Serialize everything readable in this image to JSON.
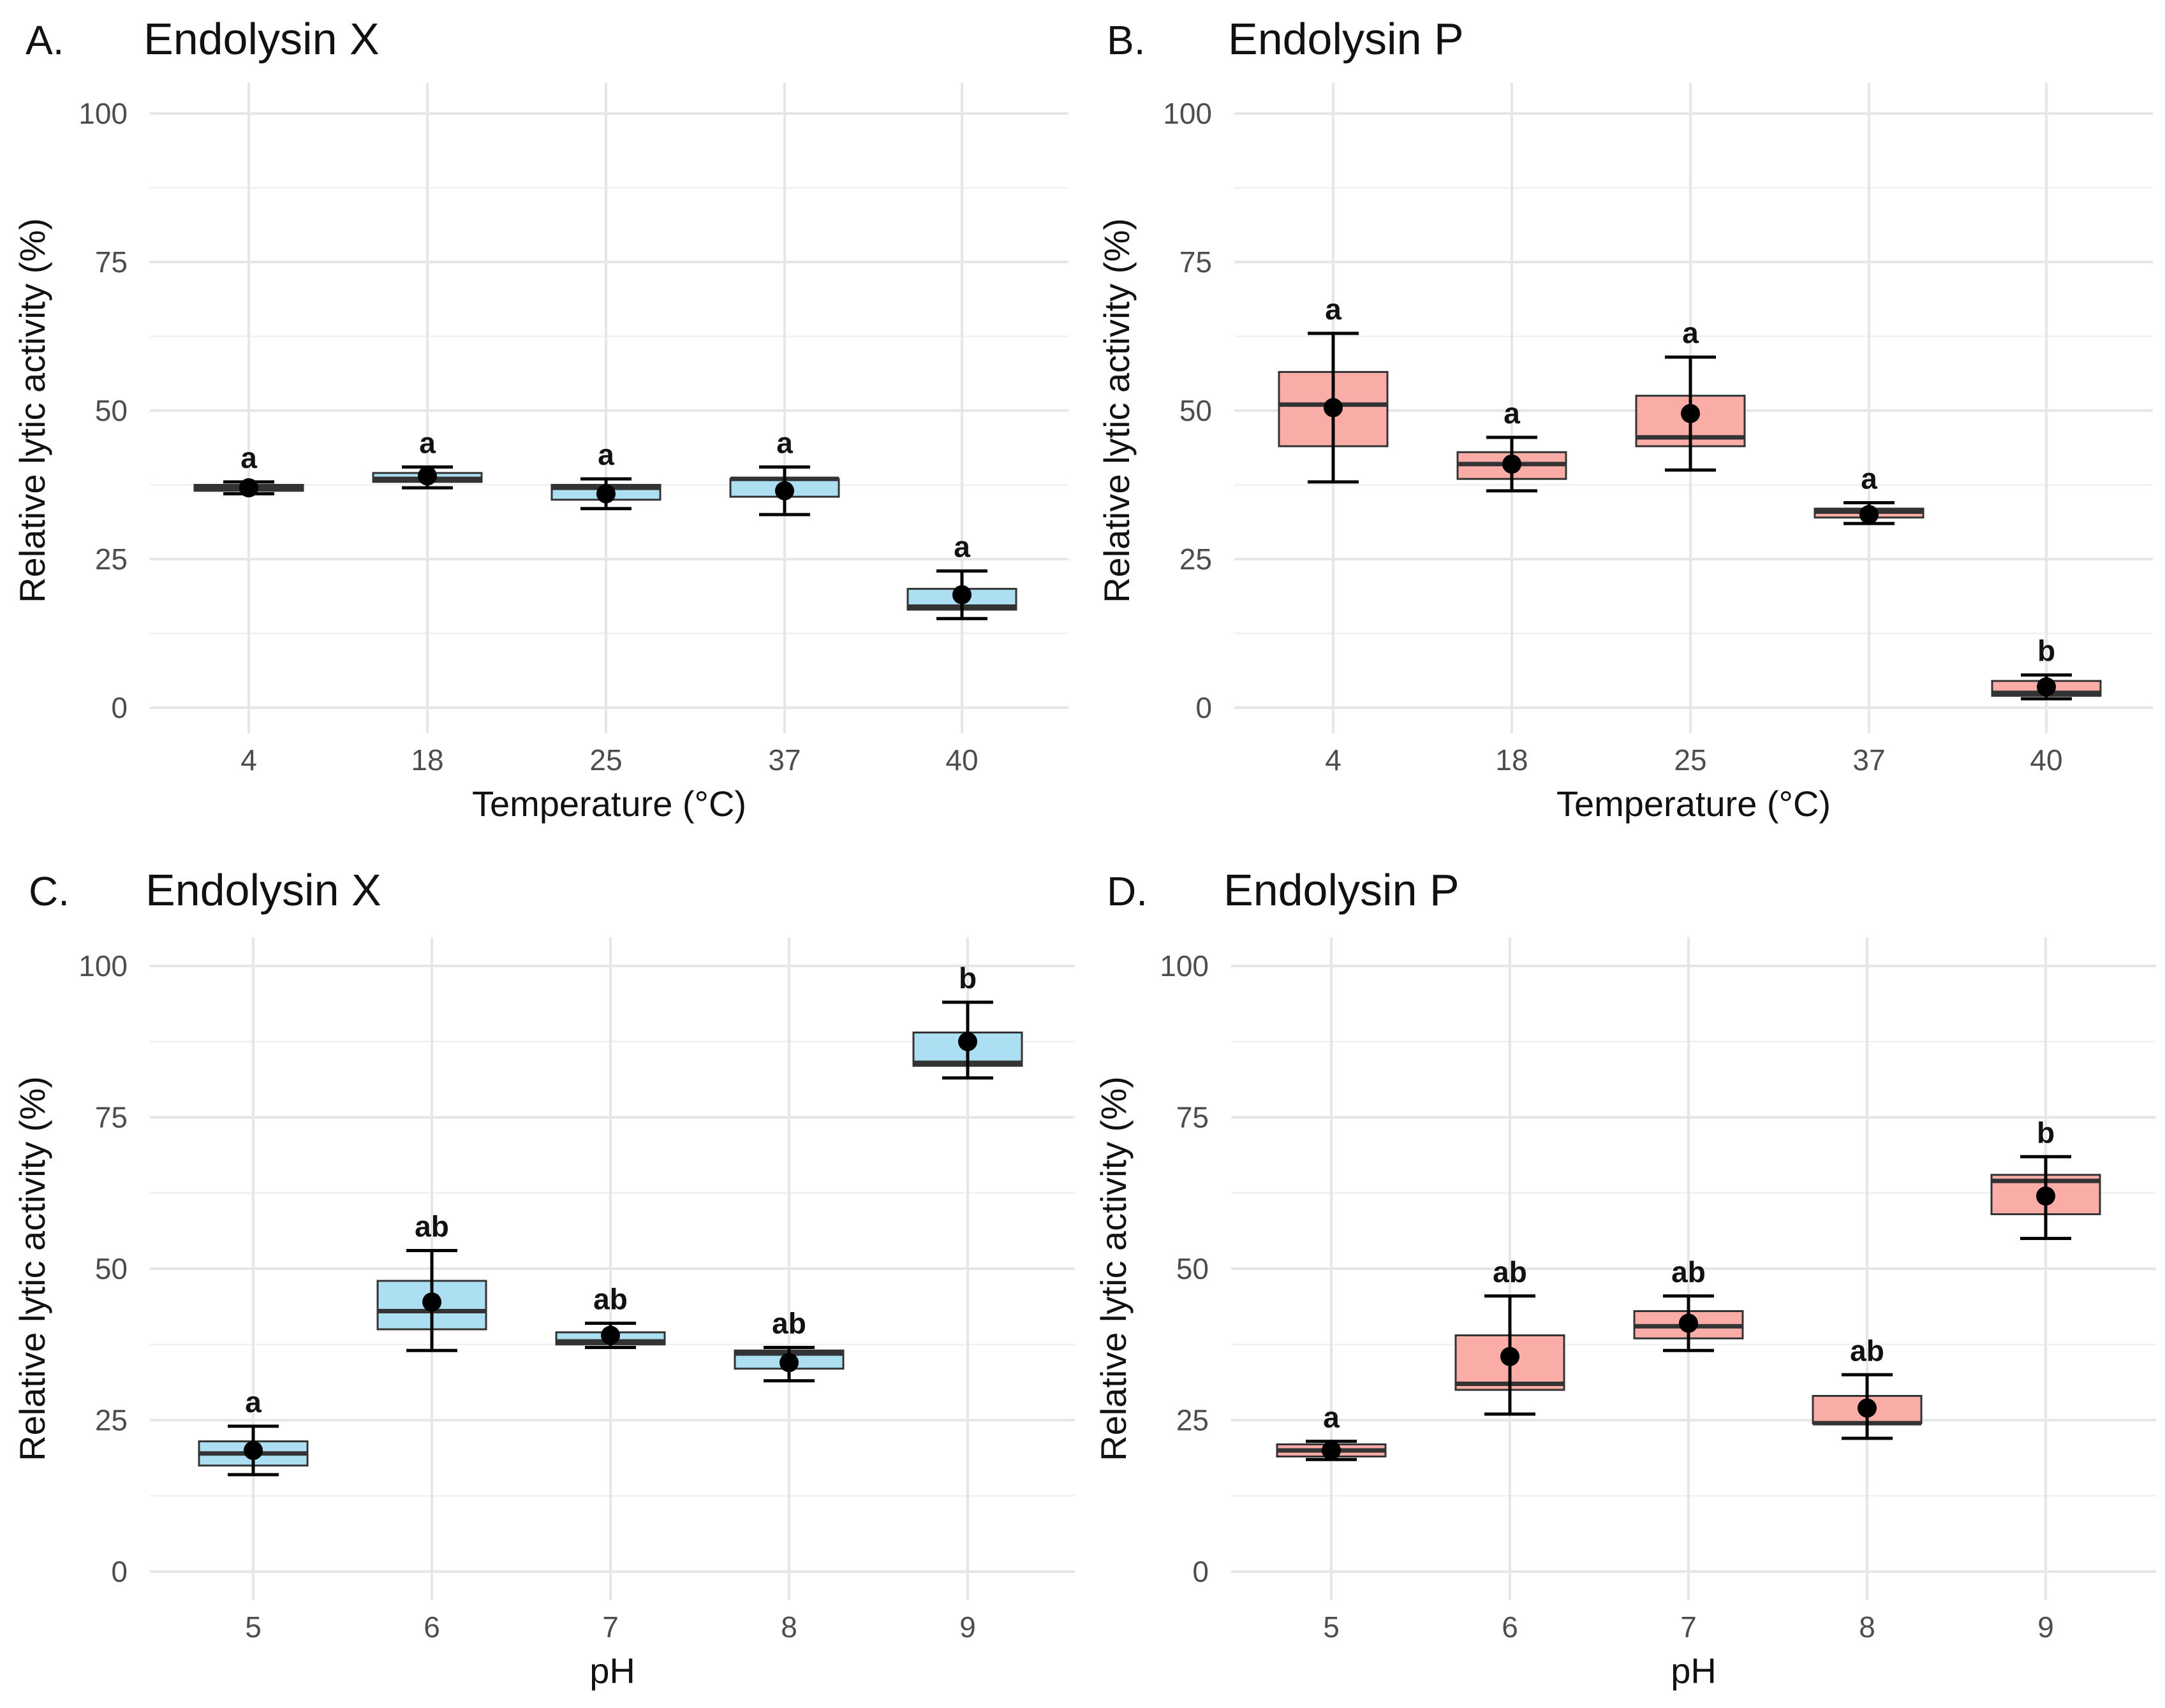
{
  "chart_data": [
    {
      "panel": "A.",
      "type": "box",
      "title": "Endolysin X",
      "xlabel": "Temperature (°C)",
      "ylabel": "Relative lytic activity (%)",
      "ylim": [
        0,
        100
      ],
      "yticks": [
        0,
        25,
        50,
        75,
        100
      ],
      "fill_color": "#ADDFF2",
      "categories": [
        "4",
        "18",
        "25",
        "37",
        "40"
      ],
      "boxes": [
        {
          "q1": 36.5,
          "median": 37.0,
          "q3": 37.5,
          "mean": 37.0,
          "err_low": 36.0,
          "err_high": 38.0,
          "label": "a"
        },
        {
          "q1": 38.0,
          "median": 38.5,
          "q3": 39.5,
          "mean": 39.0,
          "err_low": 37.0,
          "err_high": 40.5,
          "label": "a"
        },
        {
          "q1": 35.0,
          "median": 37.0,
          "q3": 37.5,
          "mean": 36.0,
          "err_low": 33.5,
          "err_high": 38.5,
          "label": "a"
        },
        {
          "q1": 35.5,
          "median": 38.5,
          "q3": 38.5,
          "mean": 36.5,
          "err_low": 32.5,
          "err_high": 40.5,
          "label": "a"
        },
        {
          "q1": 16.5,
          "median": 17.0,
          "q3": 20.0,
          "mean": 19.0,
          "err_low": 15.0,
          "err_high": 23.0,
          "label": "a"
        }
      ]
    },
    {
      "panel": "B.",
      "type": "box",
      "title": "Endolysin P",
      "xlabel": "Temperature (°C)",
      "ylabel": "Relative lytic activity (%)",
      "ylim": [
        0,
        100
      ],
      "yticks": [
        0,
        25,
        50,
        75,
        100
      ],
      "fill_color": "#F9ADA6",
      "categories": [
        "4",
        "18",
        "25",
        "37",
        "40"
      ],
      "boxes": [
        {
          "q1": 44.0,
          "median": 51.0,
          "q3": 56.5,
          "mean": 50.5,
          "err_low": 38.0,
          "err_high": 63.0,
          "label": "a"
        },
        {
          "q1": 38.5,
          "median": 41.0,
          "q3": 43.0,
          "mean": 41.0,
          "err_low": 36.5,
          "err_high": 45.5,
          "label": "a"
        },
        {
          "q1": 44.0,
          "median": 45.5,
          "q3": 52.5,
          "mean": 49.5,
          "err_low": 40.0,
          "err_high": 59.0,
          "label": "a"
        },
        {
          "q1": 32.0,
          "median": 33.0,
          "q3": 33.5,
          "mean": 32.5,
          "err_low": 31.0,
          "err_high": 34.5,
          "label": "a"
        },
        {
          "q1": 2.0,
          "median": 2.5,
          "q3": 4.5,
          "mean": 3.5,
          "err_low": 1.5,
          "err_high": 5.5,
          "label": "b"
        }
      ]
    },
    {
      "panel": "C.",
      "type": "box",
      "title": "Endolysin X",
      "xlabel": "pH",
      "ylabel": "Relative lytic activity (%)",
      "ylim": [
        0,
        100
      ],
      "yticks": [
        0,
        25,
        50,
        75,
        100
      ],
      "fill_color": "#ADDFF2",
      "categories": [
        "5",
        "6",
        "7",
        "8",
        "9"
      ],
      "boxes": [
        {
          "q1": 17.5,
          "median": 19.5,
          "q3": 21.5,
          "mean": 20.0,
          "err_low": 16.0,
          "err_high": 24.0,
          "label": "a"
        },
        {
          "q1": 40.0,
          "median": 43.0,
          "q3": 48.0,
          "mean": 44.5,
          "err_low": 36.5,
          "err_high": 53.0,
          "label": "ab"
        },
        {
          "q1": 37.5,
          "median": 38.0,
          "q3": 39.5,
          "mean": 39.0,
          "err_low": 37.0,
          "err_high": 41.0,
          "label": "ab"
        },
        {
          "q1": 33.5,
          "median": 36.0,
          "q3": 36.5,
          "mean": 34.5,
          "err_low": 31.5,
          "err_high": 37.0,
          "label": "ab"
        },
        {
          "q1": 83.5,
          "median": 84.0,
          "q3": 89.0,
          "mean": 87.5,
          "err_low": 81.5,
          "err_high": 94.0,
          "label": "b"
        }
      ]
    },
    {
      "panel": "D.",
      "type": "box",
      "title": "Endolysin P",
      "xlabel": "pH",
      "ylabel": "Relative lytic activity (%)",
      "ylim": [
        0,
        100
      ],
      "yticks": [
        0,
        25,
        50,
        75,
        100
      ],
      "fill_color": "#F9ADA6",
      "categories": [
        "5",
        "6",
        "7",
        "8",
        "9"
      ],
      "boxes": [
        {
          "q1": 19.0,
          "median": 20.0,
          "q3": 21.0,
          "mean": 20.0,
          "err_low": 18.5,
          "err_high": 21.5,
          "label": "a"
        },
        {
          "q1": 30.0,
          "median": 31.0,
          "q3": 39.0,
          "mean": 35.5,
          "err_low": 26.0,
          "err_high": 45.5,
          "label": "ab"
        },
        {
          "q1": 38.5,
          "median": 40.5,
          "q3": 43.0,
          "mean": 41.0,
          "err_low": 36.5,
          "err_high": 45.5,
          "label": "ab"
        },
        {
          "q1": 24.5,
          "median": 24.5,
          "q3": 29.0,
          "mean": 27.0,
          "err_low": 22.0,
          "err_high": 32.5,
          "label": "ab"
        },
        {
          "q1": 59.0,
          "median": 64.5,
          "q3": 65.5,
          "mean": 62.0,
          "err_low": 55.0,
          "err_high": 68.5,
          "label": "b"
        }
      ]
    }
  ]
}
